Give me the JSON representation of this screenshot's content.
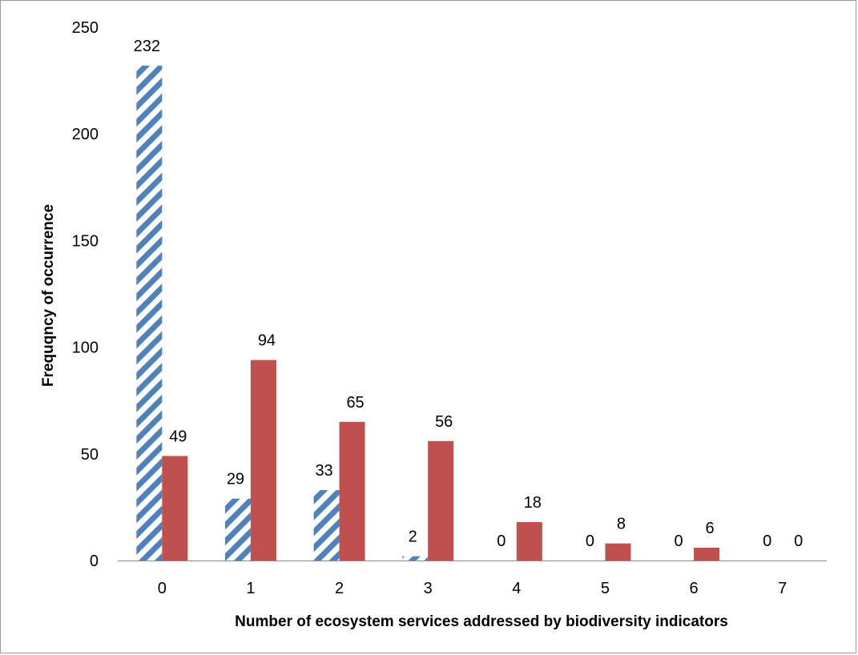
{
  "chart_data": {
    "type": "bar",
    "categories": [
      "0",
      "1",
      "2",
      "3",
      "4",
      "5",
      "6",
      "7"
    ],
    "series": [
      {
        "values": [
          232,
          29,
          33,
          2,
          0,
          0,
          0,
          0
        ],
        "color": "#4f81bd",
        "pattern": "diagonal-stripes"
      },
      {
        "values": [
          49,
          94,
          65,
          56,
          18,
          8,
          6,
          0
        ],
        "color": "#c0504d",
        "pattern": "solid"
      }
    ],
    "xlabel": "Number of ecosystem services addressed by biodiversity indicators",
    "ylabel": "Frequqncy of occurrence",
    "ylim": [
      0,
      250
    ],
    "yticks": [
      "0",
      "50",
      "100",
      "150",
      "200",
      "250"
    ],
    "data_labels": true,
    "grid": false,
    "legend": "none"
  }
}
